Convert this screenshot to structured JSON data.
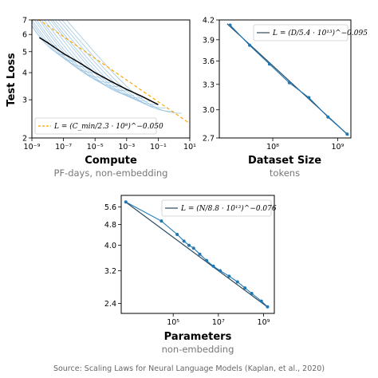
{
  "source": "Source: Scaling Laws for Neural Language Models (Kaplan, et al., 2020)",
  "colors": {
    "data": "#1f77b4",
    "fit_dark": "#2d4a5e",
    "dashed": "#ffa500",
    "curves": "#8fbcdc",
    "frontier": "#000000"
  },
  "chart_data": [
    {
      "type": "line",
      "xlabel": "Compute",
      "subtitle": "PF-days, non-embedding",
      "ylabel": "Test Loss",
      "xscale": "log",
      "yscale": "log",
      "xlim": [
        1e-09,
        10
      ],
      "ylim": [
        2,
        7
      ],
      "xticks": [
        "10⁻⁹",
        "10⁻⁷",
        "10⁻⁵",
        "10⁻³",
        "10⁻¹",
        "10¹"
      ],
      "yticks": [
        "2",
        "3",
        "4",
        "5",
        "6",
        "7"
      ],
      "legend": "L = (C_min/2.3 · 10⁸)^−0.050",
      "legend_position": "lower-left",
      "fit": {
        "style": "dashed",
        "color": "#ffa500",
        "k": 230000000.0,
        "alpha": 0.05
      },
      "frontier": {
        "x": [
          3e-09,
          1e-08,
          1e-07,
          1e-06,
          1e-05,
          0.0001,
          0.001,
          0.01,
          0.1
        ],
        "y": [
          5.8,
          5.5,
          4.9,
          4.45,
          4.0,
          3.65,
          3.35,
          3.1,
          2.85
        ]
      },
      "training_curves": [
        {
          "x_start": 6e-10,
          "x_end": 4e-08,
          "y_start": 7.0,
          "y_end": 5.3
        },
        {
          "x_start": 6e-10,
          "x_end": 2e-07,
          "y_start": 7.0,
          "y_end": 4.8
        },
        {
          "x_start": 8e-10,
          "x_end": 8e-07,
          "y_start": 7.0,
          "y_end": 4.5
        },
        {
          "x_start": 1e-09,
          "x_end": 3e-06,
          "y_start": 7.0,
          "y_end": 4.25
        },
        {
          "x_start": 1.5e-09,
          "x_end": 1e-05,
          "y_start": 7.0,
          "y_end": 4.0
        },
        {
          "x_start": 2e-09,
          "x_end": 3e-05,
          "y_start": 7.0,
          "y_end": 3.8
        },
        {
          "x_start": 3e-09,
          "x_end": 0.0001,
          "y_start": 7.0,
          "y_end": 3.6
        },
        {
          "x_start": 4e-09,
          "x_end": 0.0003,
          "y_start": 7.0,
          "y_end": 3.45
        },
        {
          "x_start": 6e-09,
          "x_end": 0.001,
          "y_start": 7.0,
          "y_end": 3.3
        },
        {
          "x_start": 1e-08,
          "x_end": 0.003,
          "y_start": 7.0,
          "y_end": 3.15
        },
        {
          "x_start": 1.5e-08,
          "x_end": 0.01,
          "y_start": 7.0,
          "y_end": 3.05
        },
        {
          "x_start": 2e-08,
          "x_end": 0.03,
          "y_start": 7.0,
          "y_end": 2.95
        },
        {
          "x_start": 3e-08,
          "x_end": 0.1,
          "y_start": 7.0,
          "y_end": 2.85
        },
        {
          "x_start": 5e-08,
          "x_end": 0.3,
          "y_start": 7.0,
          "y_end": 2.75
        },
        {
          "x_start": 8e-08,
          "x_end": 1.0,
          "y_start": 7.0,
          "y_end": 2.65
        },
        {
          "x_start": 1.5e-07,
          "x_end": 3.0,
          "y_start": 7.0,
          "y_end": 2.6
        }
      ]
    },
    {
      "type": "line",
      "xlabel": "Dataset Size",
      "subtitle": "tokens",
      "xscale": "log",
      "yscale": "log",
      "xlim": [
        15000000.0,
        1600000000.0
      ],
      "ylim": [
        2.7,
        4.2
      ],
      "xticks": [
        "10⁸",
        "10⁹"
      ],
      "yticks": [
        "2.7",
        "3.0",
        "3.3",
        "3.6",
        "3.9",
        "4.2"
      ],
      "legend": "L = (D/5.4 · 10¹³)^−0.095",
      "legend_position": "top-right",
      "x": [
        22000000.0,
        44000000.0,
        89000000.0,
        180000000.0,
        360000000.0,
        710000000.0,
        1400000000.0
      ],
      "y": [
        4.12,
        3.82,
        3.56,
        3.32,
        3.14,
        2.92,
        2.74
      ],
      "fit": {
        "k": 54000000000000.0,
        "alpha": 0.095
      }
    },
    {
      "type": "line",
      "xlabel": "Parameters",
      "subtitle": "non-embedding",
      "xscale": "log",
      "yscale": "log",
      "xlim": [
        500.0,
        3000000000.0
      ],
      "ylim": [
        2.2,
        6.2
      ],
      "xticks": [
        "10⁵",
        "10⁷",
        "10⁹"
      ],
      "yticks": [
        "2.4",
        "3.2",
        "4.0",
        "4.8",
        "5.6"
      ],
      "legend": "L = (N/8.8 · 10¹³)^−0.076",
      "legend_position": "top-right",
      "x": [
        800.0,
        30000.0,
        150000.0,
        300000.0,
        500000.0,
        800000.0,
        1500000.0,
        3000000.0,
        6000000.0,
        12000000.0,
        30000000.0,
        70000000.0,
        150000000.0,
        300000000.0,
        800000000.0,
        1500000000.0
      ],
      "y": [
        5.85,
        4.95,
        4.4,
        4.15,
        4.0,
        3.9,
        3.7,
        3.5,
        3.33,
        3.2,
        3.05,
        2.9,
        2.75,
        2.62,
        2.45,
        2.33
      ],
      "fit": {
        "k": 88000000000000.0,
        "alpha": 0.076
      }
    }
  ]
}
